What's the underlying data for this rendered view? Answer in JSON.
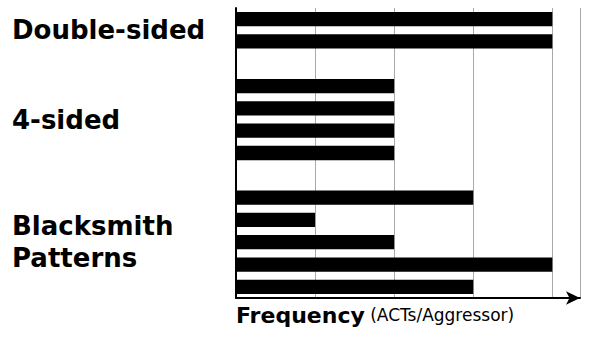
{
  "chart_data": {
    "type": "bar",
    "orientation": "horizontal",
    "x_label": "Frequency (ACTs/Aggressor)",
    "groups": [
      {
        "label": "Double-sided",
        "values": [
          4,
          4
        ]
      },
      {
        "label": "4-sided",
        "values": [
          2,
          2,
          2,
          2
        ]
      },
      {
        "label": "Blacksmith Patterns",
        "values": [
          3,
          1,
          2,
          4,
          3
        ]
      }
    ],
    "color": "#000000",
    "xlim": [
      0,
      4.35
    ],
    "xticks": [
      0,
      1,
      2,
      3,
      4
    ],
    "grid": true,
    "tick_labels": false
  }
}
